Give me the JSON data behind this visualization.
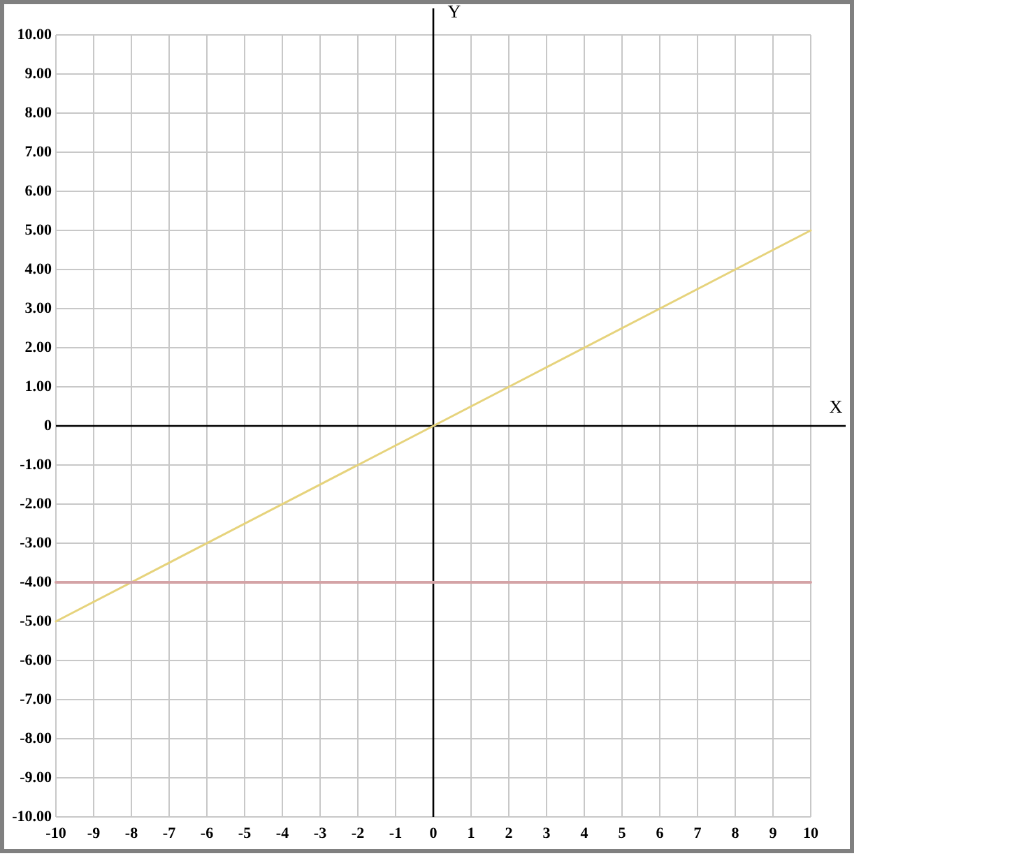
{
  "chart_data": {
    "type": "line",
    "xlabel": "X",
    "ylabel": "Y",
    "xlim": [
      -10,
      10
    ],
    "ylim": [
      -10,
      10
    ],
    "xticks": [
      -10,
      -9,
      -8,
      -7,
      -6,
      -5,
      -4,
      -3,
      -2,
      -1,
      0,
      1,
      2,
      3,
      4,
      5,
      6,
      7,
      8,
      9,
      10
    ],
    "yticks": [
      {
        "value": 10,
        "label": "10.00"
      },
      {
        "value": 9,
        "label": "9.00"
      },
      {
        "value": 8,
        "label": "8.00"
      },
      {
        "value": 7,
        "label": "7.00"
      },
      {
        "value": 6,
        "label": "6.00"
      },
      {
        "value": 5,
        "label": "5.00"
      },
      {
        "value": 4,
        "label": "4.00"
      },
      {
        "value": 3,
        "label": "3.00"
      },
      {
        "value": 2,
        "label": "2.00"
      },
      {
        "value": 1,
        "label": "1.00"
      },
      0,
      {
        "value": -1,
        "label": "-1.00"
      },
      {
        "value": -2,
        "label": "-2.00"
      },
      {
        "value": -3,
        "label": "-3.00"
      },
      {
        "value": -4,
        "label": "-4.00"
      },
      {
        "value": -5,
        "label": "-5.00"
      },
      {
        "value": -6,
        "label": "-6.00"
      },
      {
        "value": -7,
        "label": "-7.00"
      },
      {
        "value": -8,
        "label": "-8.00"
      },
      {
        "value": -9,
        "label": "-9.00"
      },
      {
        "value": -10,
        "label": "-10.00"
      }
    ],
    "grid": true,
    "marker": "none",
    "line_style": "solid",
    "x": [
      -10,
      10
    ],
    "series": [
      {
        "color": "#e6d37c",
        "values": [
          -5,
          5
        ]
      },
      {
        "color": "#d4a3a6",
        "values": [
          -4,
          -4
        ]
      }
    ]
  }
}
